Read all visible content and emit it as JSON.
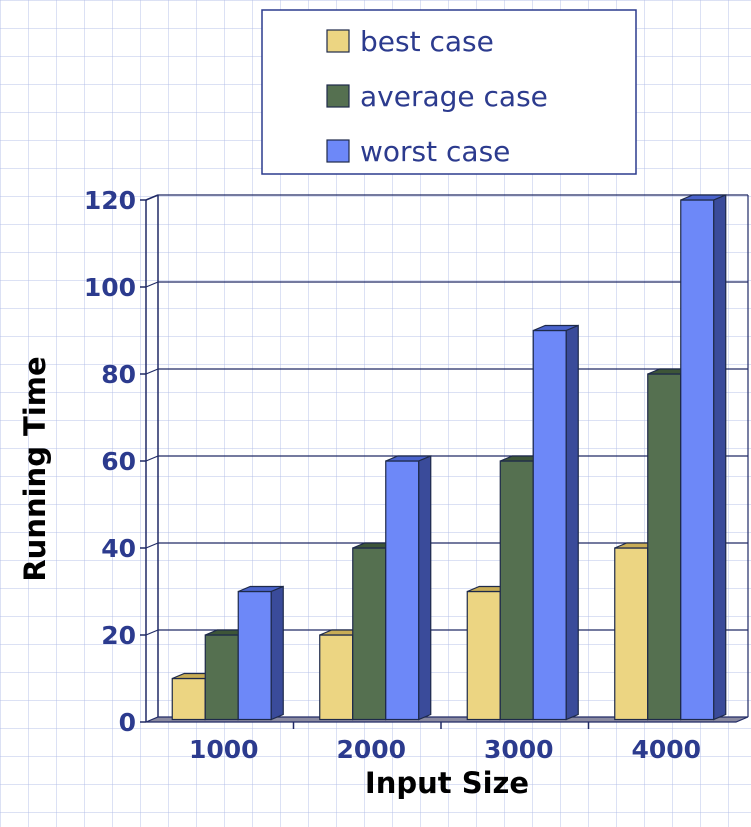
{
  "chart_data": {
    "type": "bar",
    "categories": [
      "1000",
      "2000",
      "3000",
      "4000"
    ],
    "series": [
      {
        "name": "best case",
        "values": [
          10,
          20,
          30,
          40
        ]
      },
      {
        "name": "average case",
        "values": [
          20,
          40,
          60,
          80
        ]
      },
      {
        "name": "worst case",
        "values": [
          30,
          60,
          90,
          120
        ]
      }
    ],
    "xlabel": "Input Size",
    "ylabel": "Running Time",
    "ylim": [
      0,
      120
    ],
    "yticks": [
      "0",
      "20",
      "40",
      "60",
      "80",
      "100",
      "120"
    ],
    "grid": true,
    "legend_position": "top",
    "three_d": true
  },
  "colors": {
    "series": [
      "#ecd582",
      "#557050",
      "#6d88f8"
    ],
    "series_top": [
      "#c8ac55",
      "#3d5538",
      "#4a63cc"
    ],
    "series_side": [
      "#a48d43",
      "#34472f",
      "#3a4b9a"
    ],
    "text": "#2c3b8e",
    "axis": "#202a66",
    "floor": "#8a8aa0"
  }
}
